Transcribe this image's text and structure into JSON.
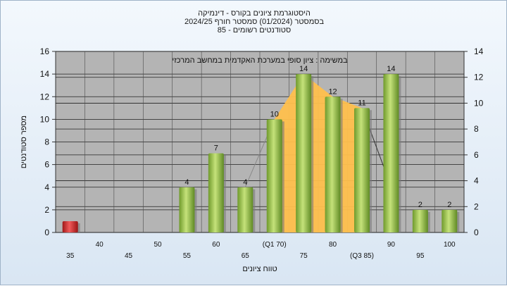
{
  "header": {
    "line1": "היסטוגרמת ציונים בקורס - דינמיקה",
    "line2": "בסמסטר  (01/2024)  סמסטר חורף  2024/25",
    "line3": "סטודנטים רשומים - 85"
  },
  "chart_data": {
    "type": "bar",
    "title": "היסטוגרמת ציונים בקורס - דינמיקה",
    "annotation": "במשימה : ציון סופי במערכת האקדמית במחשב המרכזי",
    "xlabel": "טווח ציונים",
    "ylabel": "מספר סטודנטים",
    "categories": [
      "35",
      "40",
      "45",
      "50",
      "55",
      "60",
      "65",
      "(Q1 70)",
      "75",
      "80",
      "(Q3 85)",
      "90",
      "95",
      "100"
    ],
    "values": [
      1,
      0,
      0,
      0,
      4,
      7,
      4,
      10,
      14,
      12,
      11,
      14,
      2,
      2
    ],
    "data_labels": [
      "",
      "",
      "",
      "",
      "4",
      "7",
      "4",
      "10",
      "14",
      "12",
      "11",
      "14",
      "2",
      "2"
    ],
    "bar_colors": [
      "#d42a2a",
      "#8fc04a",
      "#8fc04a",
      "#8fc04a",
      "#8fc04a",
      "#8fc04a",
      "#8fc04a",
      "#8fc04a",
      "#8fc04a",
      "#8fc04a",
      "#8fc04a",
      "#8fc04a",
      "#8fc04a",
      "#8fc04a"
    ],
    "ylim": [
      0,
      16
    ],
    "yticks": [
      0,
      2,
      4,
      6,
      8,
      10,
      12,
      14,
      16
    ],
    "y2lim": [
      0,
      14
    ],
    "y2ticks": [
      0,
      2,
      4,
      6,
      8,
      10,
      12,
      14
    ],
    "iqr_band": {
      "from": "(Q1 70)",
      "to": "(Q3 85)",
      "color": "#ffc04d"
    },
    "grid": true,
    "plot_background": "#b4b4b4"
  }
}
